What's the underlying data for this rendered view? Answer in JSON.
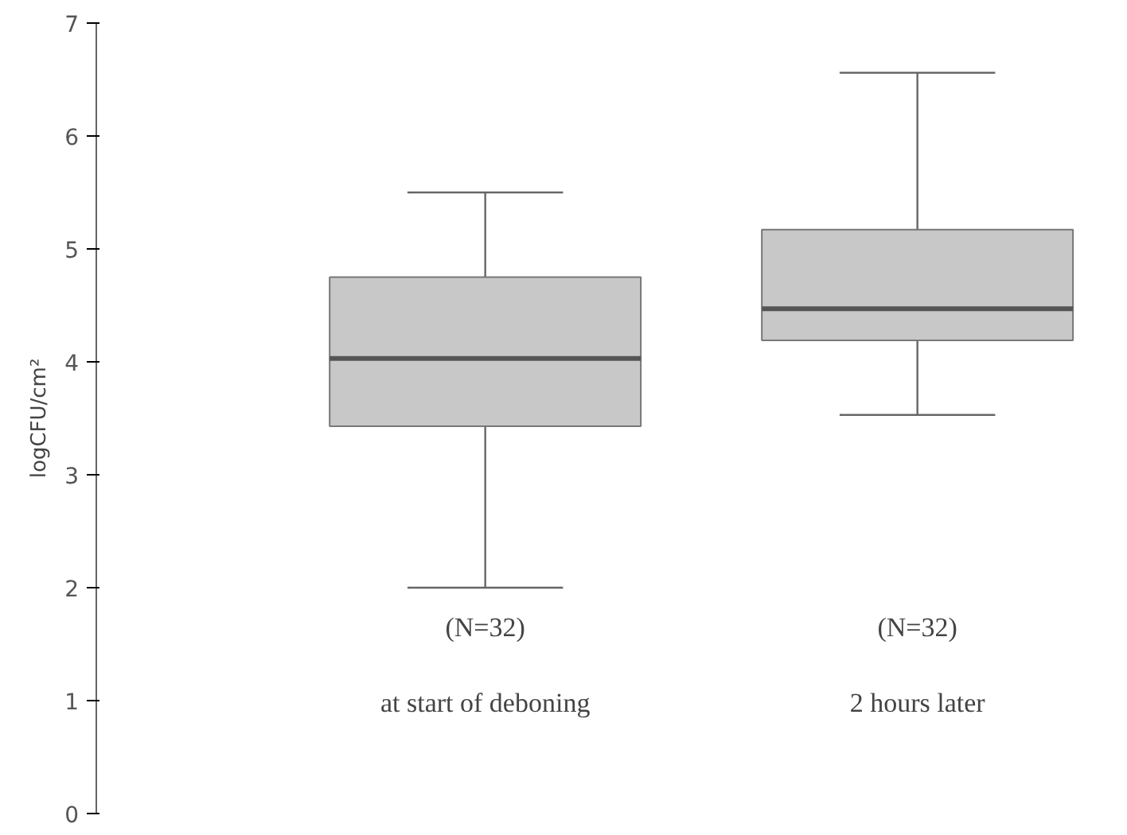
{
  "chart_data": {
    "type": "box",
    "ylabel": "logCFU/cm²",
    "categories": [
      "at start of deboning",
      "2 hours later"
    ],
    "boxes": [
      {
        "low": 2.0,
        "q1": 3.43,
        "median": 4.03,
        "q3": 4.75,
        "high": 5.5
      },
      {
        "low": 3.53,
        "q1": 4.19,
        "median": 4.47,
        "q3": 5.17,
        "high": 6.56
      }
    ],
    "color": "#c8c8c8",
    "ylim": [
      0,
      7
    ],
    "yticks": [
      0,
      1,
      2,
      3,
      4,
      5,
      6,
      7
    ],
    "grid": false,
    "annotations": [
      "(N=32)",
      "(N=32)"
    ]
  }
}
